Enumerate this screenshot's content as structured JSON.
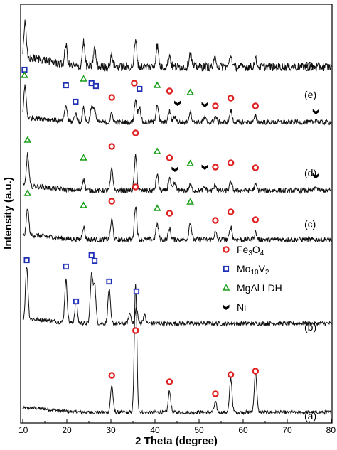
{
  "chart_data": {
    "type": "line",
    "xlabel": "2 Theta (degree)",
    "ylabel": "Intensity (a.u.)",
    "xlim": [
      10,
      80
    ],
    "x_ticks": [
      "10",
      "20",
      "30",
      "40",
      "50",
      "60",
      "70",
      "80"
    ],
    "y_ticks_shown": false,
    "grid": false,
    "legend_position": "right-center",
    "legend": [
      {
        "key": "fe3o4",
        "parts": [
          [
            "Fe",
            ""
          ],
          [
            "3",
            "sub"
          ],
          [
            "O",
            ""
          ],
          [
            "4",
            "sub"
          ]
        ],
        "marker": "circle",
        "color": "#e02020"
      },
      {
        "key": "mo10v2",
        "parts": [
          [
            "Mo",
            ""
          ],
          [
            "10",
            "sub"
          ],
          [
            "V",
            ""
          ],
          [
            "2",
            "sub"
          ]
        ],
        "marker": "square",
        "color": "#1f2fb5"
      },
      {
        "key": "mgal_ldh",
        "parts": [
          [
            "MgAl LDH",
            ""
          ]
        ],
        "marker": "triangle",
        "color": "#1aa01a"
      },
      {
        "key": "ni",
        "parts": [
          [
            "Ni",
            ""
          ]
        ],
        "marker": "chevron",
        "color": "#000000"
      }
    ],
    "series": [
      {
        "name": "(a)",
        "noise": 2.5,
        "peaks": [
          [
            30.2,
            38
          ],
          [
            35.6,
            180
          ],
          [
            43.3,
            30
          ],
          [
            53.7,
            14
          ],
          [
            57.2,
            48
          ],
          [
            62.8,
            58
          ]
        ],
        "markers": [
          {
            "type": "circle",
            "x": [
              30.2,
              35.6,
              43.3,
              53.7,
              57.2,
              62.8
            ]
          }
        ]
      },
      {
        "name": "(b)",
        "noise": 3,
        "peaks": [
          [
            10.9,
            75
          ],
          [
            19.8,
            60
          ],
          [
            22.1,
            32
          ],
          [
            25.6,
            68
          ],
          [
            26.3,
            55
          ],
          [
            29.6,
            48
          ],
          [
            34.3,
            14
          ],
          [
            35.8,
            22
          ],
          [
            37.6,
            12
          ]
        ],
        "markers": [
          {
            "type": "square",
            "x": [
              10.9,
              19.8,
              22.1,
              25.6,
              26.3,
              29.6,
              35.8
            ]
          }
        ]
      },
      {
        "name": "(c)",
        "noise": 3.5,
        "peaks": [
          [
            11.1,
            38
          ],
          [
            23.8,
            18
          ],
          [
            30.2,
            28
          ],
          [
            35.6,
            48
          ],
          [
            40.5,
            22
          ],
          [
            43.3,
            16
          ],
          [
            48.0,
            25
          ],
          [
            53.7,
            10
          ],
          [
            57.2,
            18
          ],
          [
            62.8,
            10
          ]
        ],
        "markers": [
          {
            "type": "triangle",
            "x": [
              11.1,
              23.8,
              40.5,
              48.0
            ]
          },
          {
            "type": "circle",
            "x": [
              30.2,
              35.6,
              43.3,
              53.7,
              57.2,
              62.8
            ]
          }
        ]
      },
      {
        "name": "(d)",
        "noise": 3.5,
        "peaks": [
          [
            11.1,
            45
          ],
          [
            23.8,
            16
          ],
          [
            30.2,
            30
          ],
          [
            35.6,
            48
          ],
          [
            40.5,
            22
          ],
          [
            43.3,
            18
          ],
          [
            44.5,
            10
          ],
          [
            48.0,
            8
          ],
          [
            51.3,
            5
          ],
          [
            53.7,
            8
          ],
          [
            57.2,
            12
          ],
          [
            62.8,
            8
          ],
          [
            76.5,
            5
          ]
        ],
        "markers": [
          {
            "type": "triangle",
            "x": [
              11.1,
              23.8,
              40.5,
              48.0
            ]
          },
          {
            "type": "circle",
            "x": [
              30.2,
              35.6,
              43.3,
              53.7,
              57.2,
              62.8
            ]
          },
          {
            "type": "chevron",
            "x": [
              44.5,
              51.3,
              76.5
            ]
          }
        ]
      },
      {
        "name": "(e)",
        "noise": 3.5,
        "peaks": [
          [
            10.5,
            45
          ],
          [
            19.8,
            22
          ],
          [
            22.0,
            12
          ],
          [
            23.8,
            20
          ],
          [
            25.6,
            22
          ],
          [
            26.3,
            18
          ],
          [
            30.2,
            12
          ],
          [
            35.6,
            32
          ],
          [
            36.5,
            22
          ],
          [
            40.5,
            26
          ],
          [
            43.3,
            16
          ],
          [
            44.5,
            8
          ],
          [
            48.0,
            15
          ],
          [
            51.3,
            6
          ],
          [
            53.7,
            8
          ],
          [
            57.2,
            16
          ],
          [
            62.8,
            8
          ],
          [
            76.5,
            4
          ]
        ],
        "markers": [
          {
            "type": "square",
            "x": [
              10.4,
              19.8,
              22.0,
              25.6,
              26.6,
              36.5
            ]
          },
          {
            "type": "triangle",
            "x": [
              10.4,
              23.8,
              40.5,
              48.0
            ]
          },
          {
            "type": "circle",
            "x": [
              30.2,
              35.3,
              43.3,
              53.7,
              57.2,
              62.8
            ]
          },
          {
            "type": "chevron",
            "x": [
              45.1,
              51.3,
              76.5
            ]
          }
        ]
      },
      {
        "name": "(f)",
        "noise": 6,
        "peaks": [
          [
            10.5,
            50
          ],
          [
            19.8,
            28
          ],
          [
            23.8,
            35
          ],
          [
            26.3,
            26
          ],
          [
            30.2,
            16
          ],
          [
            35.6,
            36
          ],
          [
            40.5,
            30
          ],
          [
            43.3,
            16
          ],
          [
            48.0,
            20
          ],
          [
            53.7,
            12
          ],
          [
            57.2,
            16
          ],
          [
            62.8,
            10
          ]
        ],
        "markers": []
      }
    ]
  }
}
